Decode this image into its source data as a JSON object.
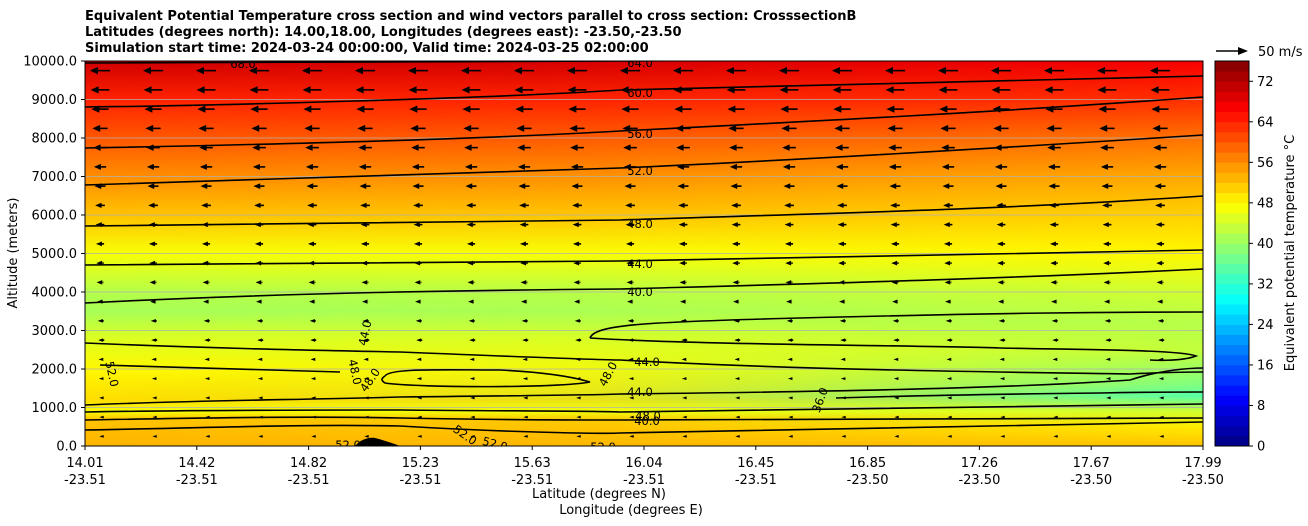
{
  "title_lines": [
    "Equivalent Potential Temperature cross section and wind vectors parallel to cross section: CrosssectionB",
    "Latitudes (degrees north): 14.00,18.00, Longitudes (degrees east): -23.50,-23.50",
    "Simulation start time: 2024-03-24 00:00:00, Valid time: 2024-03-25 02:00:00"
  ],
  "chart_data": {
    "type": "heatmap",
    "subtype": "filled contour cross section with contour lines and quiver wind vectors",
    "xlabel": "Latitude (degrees N)",
    "xlabel2": "Longitude (degrees E)",
    "ylabel": "Altitude (meters)",
    "ylim": [
      0,
      10000
    ],
    "y_ticks": [
      "0.0",
      "1000.0",
      "2000.0",
      "3000.0",
      "4000.0",
      "5000.0",
      "6000.0",
      "7000.0",
      "8000.0",
      "9000.0",
      "10000.0"
    ],
    "y_tick_values": [
      0,
      1000,
      2000,
      3000,
      4000,
      5000,
      6000,
      7000,
      8000,
      9000,
      10000
    ],
    "x_ticks": [
      {
        "lat": "14.01",
        "lon": "-23.51"
      },
      {
        "lat": "14.42",
        "lon": "-23.51"
      },
      {
        "lat": "14.82",
        "lon": "-23.51"
      },
      {
        "lat": "15.23",
        "lon": "-23.51"
      },
      {
        "lat": "15.63",
        "lon": "-23.51"
      },
      {
        "lat": "16.04",
        "lon": "-23.51"
      },
      {
        "lat": "16.45",
        "lon": "-23.51"
      },
      {
        "lat": "16.85",
        "lon": "-23.50"
      },
      {
        "lat": "17.26",
        "lon": "-23.50"
      },
      {
        "lat": "17.67",
        "lon": "-23.50"
      },
      {
        "lat": "17.99",
        "lon": "-23.50"
      }
    ],
    "grid": "horizontal",
    "colorbar": {
      "label": "Equivalent potential temperature $^\\circ$C",
      "label_display": "Equivalent potential temperature °C",
      "min": 0,
      "max": 76,
      "step": 2,
      "ticks": [
        "0",
        "8",
        "16",
        "24",
        "32",
        "40",
        "48",
        "56",
        "64",
        "72"
      ],
      "tick_values": [
        0,
        8,
        16,
        24,
        32,
        40,
        48,
        56,
        64,
        72
      ],
      "colormap": "jet"
    },
    "quiver_key": {
      "label": "50 m/s",
      "color": "#000000"
    },
    "contour_levels_labeled": [
      "68.0",
      "64.0",
      "60.0",
      "56.0",
      "52.0",
      "48.0",
      "44.0",
      "40.0",
      "44.0",
      "44.0",
      "44.0",
      "48.0",
      "52.0",
      "48.0",
      "48.0",
      "48.0",
      "40.0",
      "52.0",
      "52.0",
      "52.0",
      "52.0",
      "36.0"
    ],
    "field_profile_upstream": [
      {
        "alt": 0,
        "theta_e": 53
      },
      {
        "alt": 700,
        "theta_e": 52
      },
      {
        "alt": 900,
        "theta_e": 47
      },
      {
        "alt": 1200,
        "theta_e": 50
      },
      {
        "alt": 2000,
        "theta_e": 48
      },
      {
        "alt": 2800,
        "theta_e": 45
      },
      {
        "alt": 3500,
        "theta_e": 41
      },
      {
        "alt": 4000,
        "theta_e": 42
      },
      {
        "alt": 5000,
        "theta_e": 47
      },
      {
        "alt": 6000,
        "theta_e": 52
      },
      {
        "alt": 7000,
        "theta_e": 56
      },
      {
        "alt": 8000,
        "theta_e": 60
      },
      {
        "alt": 9000,
        "theta_e": 64
      },
      {
        "alt": 10000,
        "theta_e": 70
      }
    ],
    "field_profile_downstream": [
      {
        "alt": 0,
        "theta_e": 52
      },
      {
        "alt": 500,
        "theta_e": 49
      },
      {
        "alt": 900,
        "theta_e": 44
      },
      {
        "alt": 1300,
        "theta_e": 35
      },
      {
        "alt": 1600,
        "theta_e": 38
      },
      {
        "alt": 2500,
        "theta_e": 43
      },
      {
        "alt": 3200,
        "theta_e": 42
      },
      {
        "alt": 4000,
        "theta_e": 44
      },
      {
        "alt": 5000,
        "theta_e": 48
      },
      {
        "alt": 6000,
        "theta_e": 51
      },
      {
        "alt": 7000,
        "theta_e": 54
      },
      {
        "alt": 8000,
        "theta_e": 58
      },
      {
        "alt": 9000,
        "theta_e": 63
      },
      {
        "alt": 10000,
        "theta_e": 67
      }
    ],
    "wind_profile_ms": [
      {
        "alt": 0,
        "u": -1
      },
      {
        "alt": 1000,
        "u": -1
      },
      {
        "alt": 2000,
        "u": -2
      },
      {
        "alt": 3000,
        "u": -3
      },
      {
        "alt": 4000,
        "u": -5
      },
      {
        "alt": 5000,
        "u": -6
      },
      {
        "alt": 6000,
        "u": -7
      },
      {
        "alt": 7000,
        "u": -9
      },
      {
        "alt": 8000,
        "u": -11
      },
      {
        "alt": 9000,
        "u": -14
      },
      {
        "alt": 10000,
        "u": -16
      }
    ]
  }
}
